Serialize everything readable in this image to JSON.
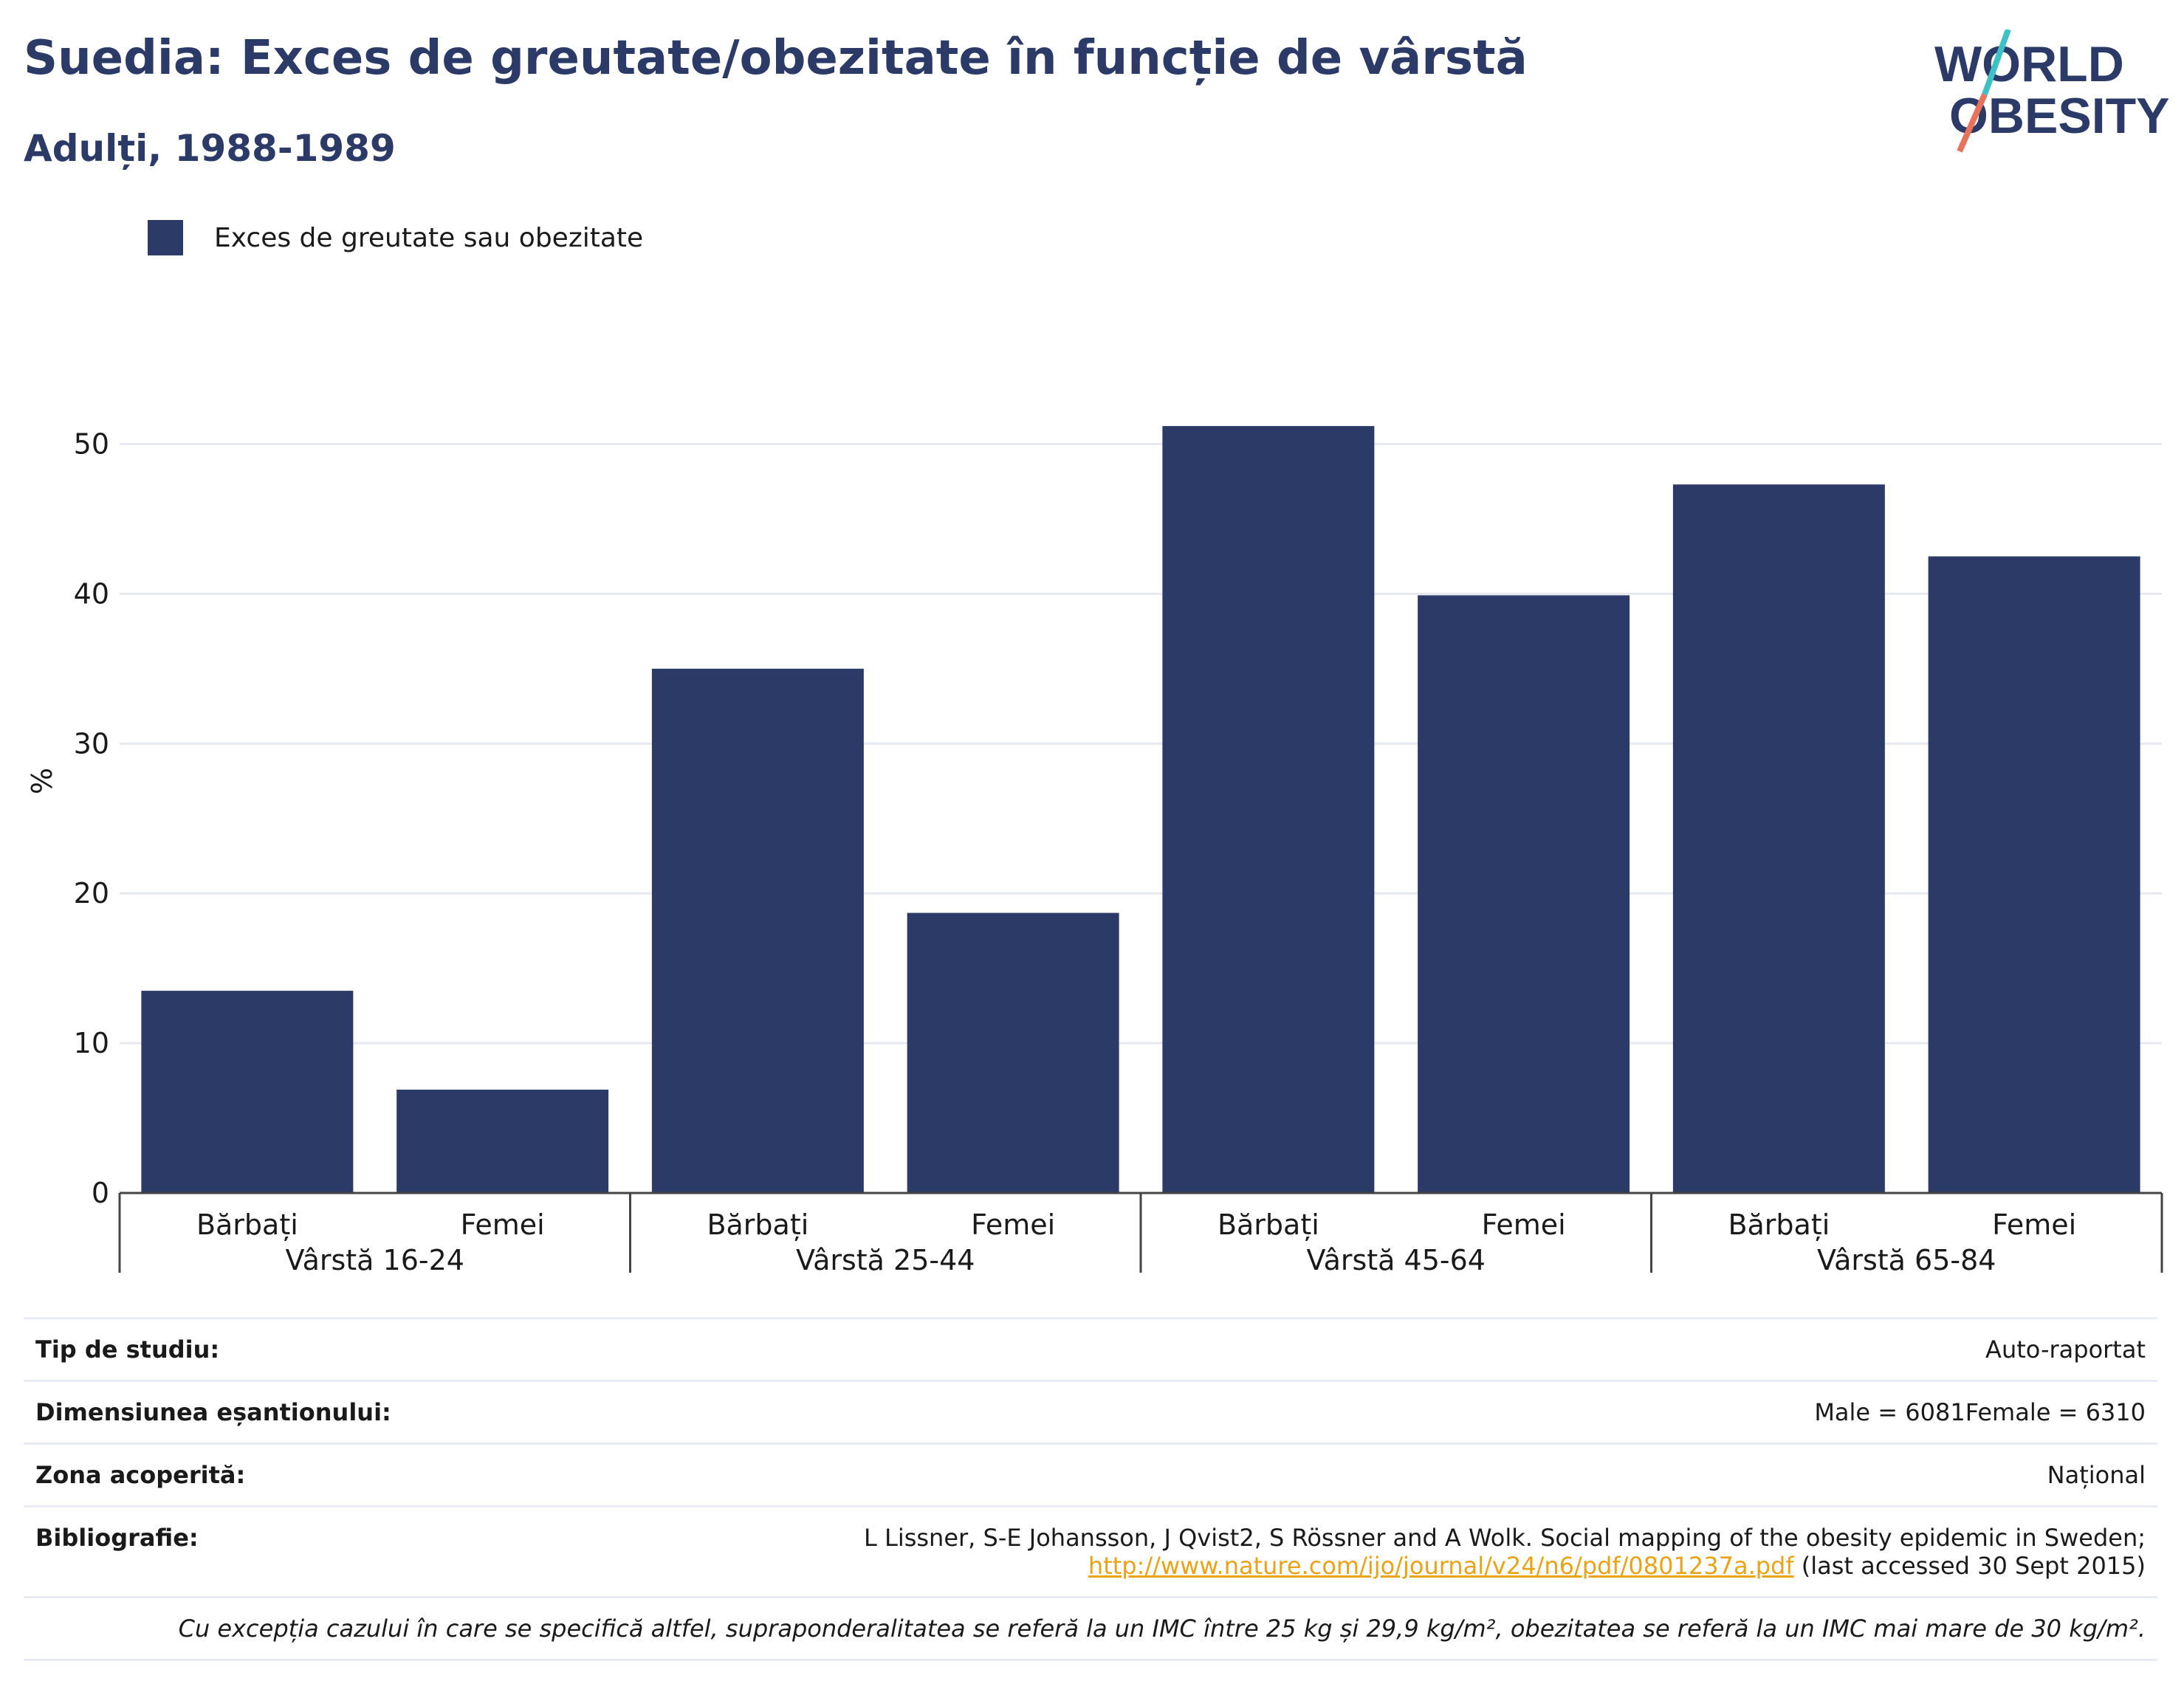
{
  "header": {
    "title": "Suedia: Exces de greutate/obezitate în funcție de vârstă",
    "subtitle": "Adulți, 1988-1989"
  },
  "logo": {
    "line1": "WORLD",
    "line2": "OBESITY",
    "colors": {
      "text": "#2b3a67",
      "slash_top": "#3ec1c4",
      "slash_bottom": "#e8735c"
    }
  },
  "legend": {
    "label": "Exces de greutate sau obezitate",
    "color": "#2b3a67"
  },
  "chart_data": {
    "type": "bar",
    "ylabel": "%",
    "ylim": [
      0,
      55
    ],
    "yticks": [
      0,
      10,
      20,
      30,
      40,
      50
    ],
    "grid": true,
    "bar_color": "#2b3a67",
    "groups": [
      "Vârstă 16-24",
      "Vârstă 25-44",
      "Vârstă 45-64",
      "Vârstă 65-84"
    ],
    "categories": [
      "Bărbați",
      "Femei",
      "Bărbați",
      "Femei",
      "Bărbați",
      "Femei",
      "Bărbați",
      "Femei"
    ],
    "series": [
      {
        "name": "Exces de greutate sau obezitate",
        "values": [
          13.5,
          6.9,
          35.0,
          18.7,
          51.2,
          39.9,
          47.3,
          42.5
        ]
      }
    ]
  },
  "info": {
    "study_type_label": "Tip de studiu:",
    "study_type_value": "Auto-raportat",
    "sample_label": "Dimensiunea eșantionului:",
    "sample_value": "Male = 6081Female = 6310",
    "area_label": "Zona acoperită:",
    "area_value": "Național",
    "biblio_label": "Bibliografie:",
    "biblio_line1": "L Lissner, S-E Johansson, J Qvist2, S Rössner and A Wolk. Social mapping of the obesity epidemic in Sweden;",
    "biblio_link": "http://www.nature.com/ijo/journal/v24/n6/pdf/0801237a.pdf",
    "biblio_after_link": " (last accessed 30 Sept 2015)",
    "footnote": "Cu excepția cazului în care se specifică altfel, supraponderalitatea se referă la un IMC între 25 kg și 29,9 kg/m², obezitatea se referă la un IMC mai mare de 30 kg/m²."
  }
}
